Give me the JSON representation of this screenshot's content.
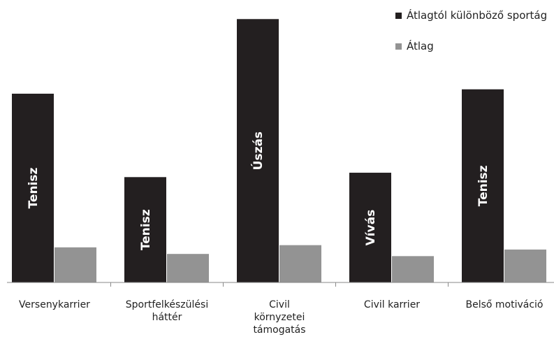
{
  "chart_data": {
    "type": "bar",
    "categories": [
      "Versenykarrier",
      "Sportfelkészülési háttér",
      "Civil környzetei támogatás",
      "Civil karrier",
      "Belső motiváció"
    ],
    "category_label_lines": [
      [
        "Versenykarrier"
      ],
      [
        "Sportfelkészülési",
        "háttér"
      ],
      [
        "Civil",
        "környzetei",
        "támogatás"
      ],
      [
        "Civil karrier"
      ],
      [
        "Belső motiváció"
      ]
    ],
    "series": [
      {
        "name": "Átlagtól különböző sportág",
        "color": "#231f20",
        "values": [
          4.3,
          2.4,
          6.0,
          2.5,
          4.4
        ],
        "bar_labels": [
          "Tenisz",
          "Tenisz",
          "Úszás",
          "Vívás",
          "Tenisz"
        ]
      },
      {
        "name": "Átlag",
        "color": "#939393",
        "values": [
          0.8,
          0.65,
          0.85,
          0.6,
          0.75
        ]
      }
    ],
    "ylim": [
      0,
      6.1
    ],
    "grid": false,
    "legend": "top-right"
  }
}
